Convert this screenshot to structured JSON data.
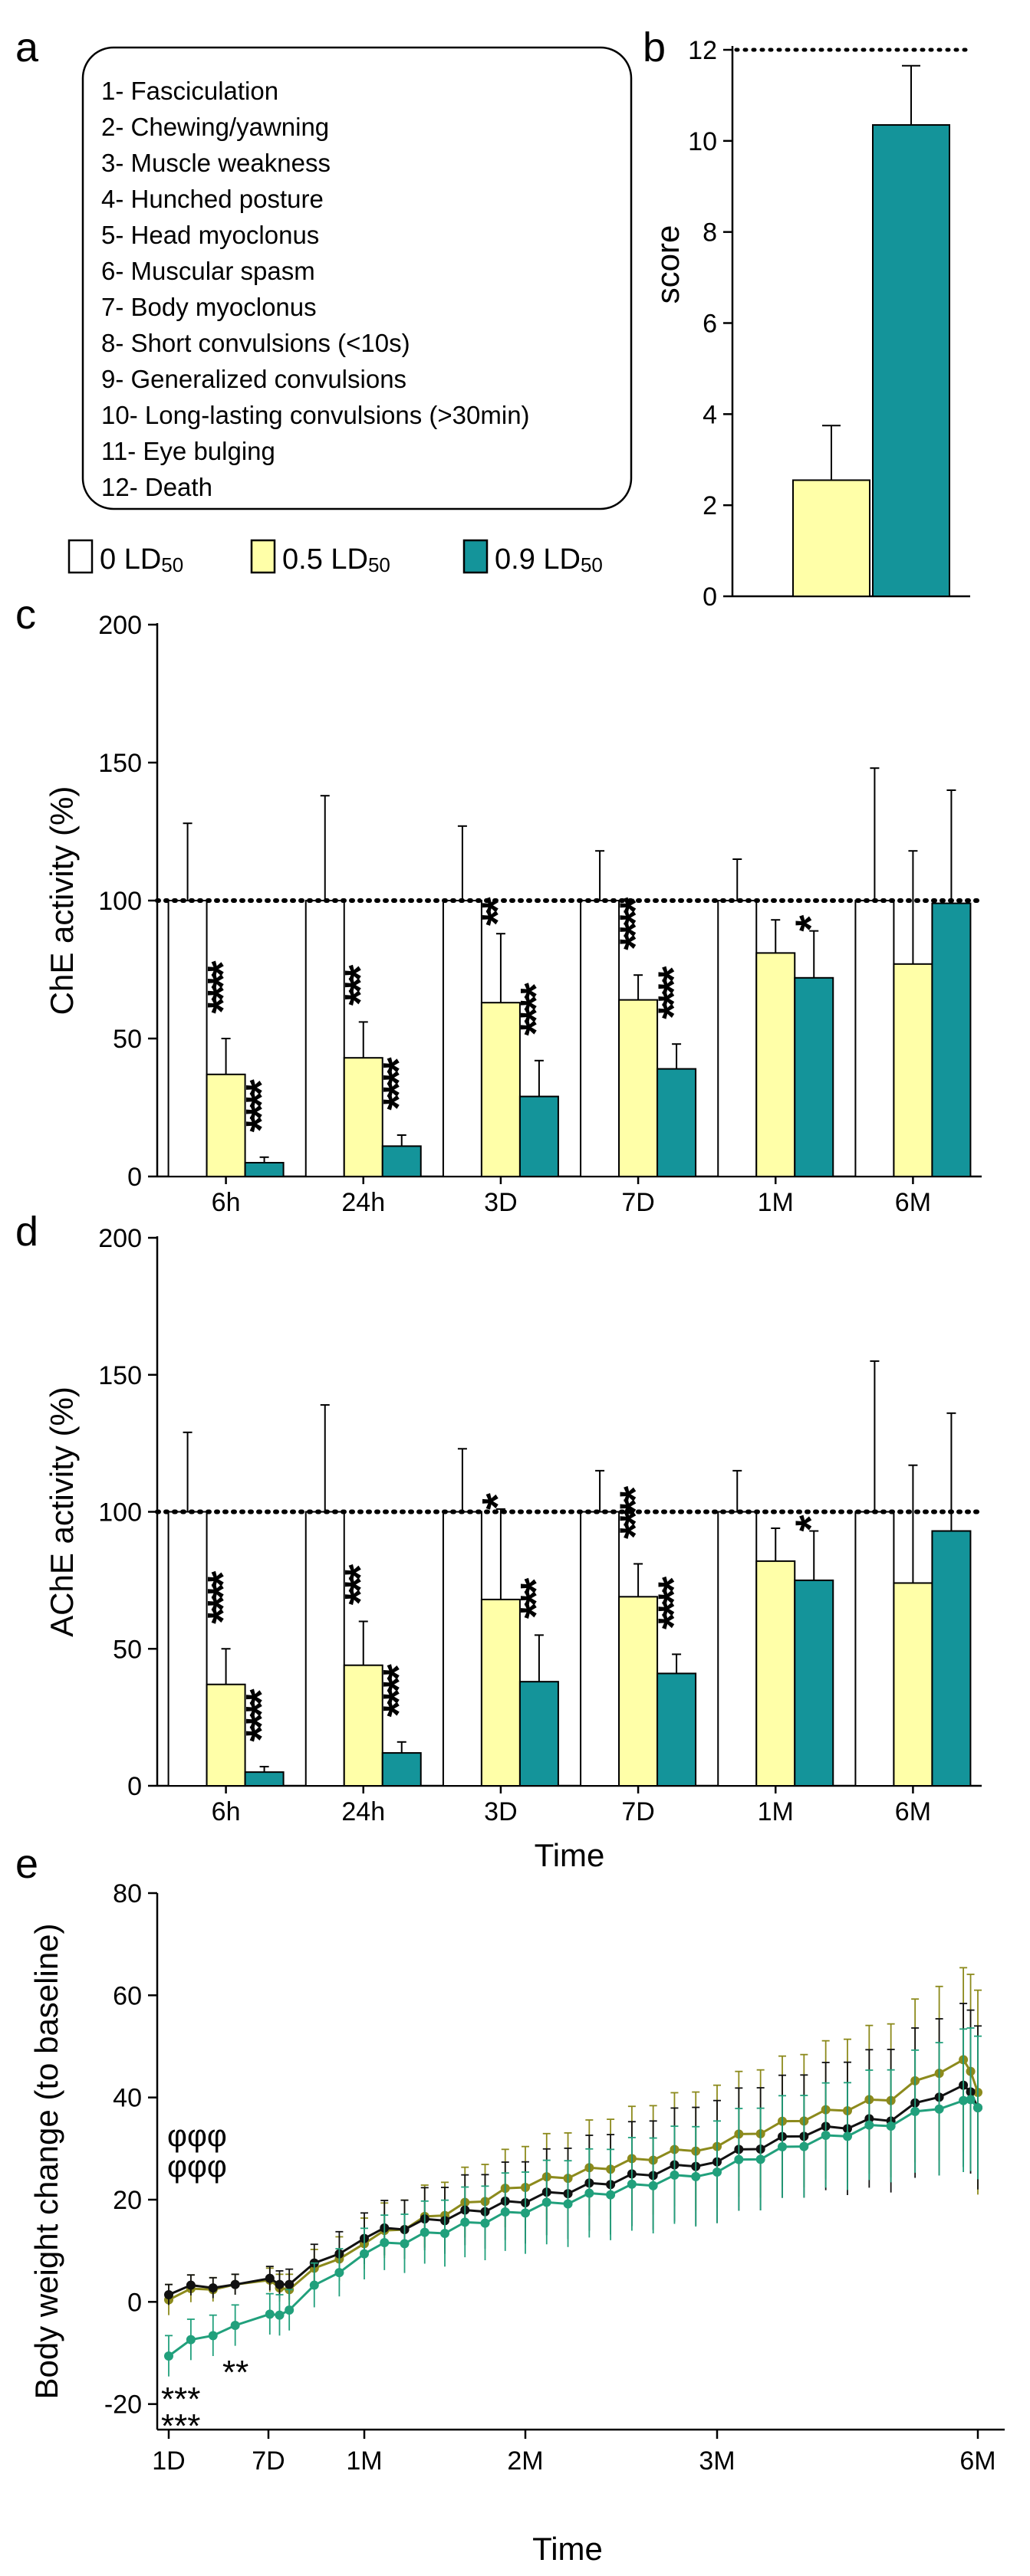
{
  "colors": {
    "c0": "#ffffff",
    "c05": "#ffffa8",
    "c09": "#14949a",
    "axis": "#000000",
    "line_black": "#111111",
    "line_olive": "#8c8a1c",
    "line_green": "#21a07c"
  },
  "panel_labels": {
    "a": "a",
    "b": "b",
    "c": "c",
    "d": "d",
    "e": "e"
  },
  "scale_list": [
    "1-   Fasciculation",
    "2-   Chewing/yawning",
    "3-   Muscle weakness",
    "4-   Hunched posture",
    "5-   Head myoclonus",
    "6-   Muscular spasm",
    "7-   Body myoclonus",
    "8-   Short convulsions (<10s)",
    "9-   Generalized convulsions",
    "10- Long-lasting convulsions (>30min)",
    "11- Eye bulging",
    "12- Death"
  ],
  "legend": [
    {
      "num": "0 LD",
      "sub": "50"
    },
    {
      "num": "0.5 LD",
      "sub": "50"
    },
    {
      "num": "0.9 LD",
      "sub": "50"
    }
  ],
  "chart_data": [
    {
      "panel": "b",
      "type": "bar",
      "ylabel": "score",
      "ylim": [
        0,
        12
      ],
      "yticks": [
        "0",
        "2",
        "4",
        "6",
        "8",
        "10",
        "12"
      ],
      "reference_line": 12,
      "series": [
        {
          "name": "0.5 LD50",
          "values": [
            2.55
          ],
          "error": [
            1.2
          ]
        },
        {
          "name": "0.9 LD50",
          "values": [
            10.35
          ],
          "error": [
            1.3
          ]
        }
      ]
    },
    {
      "panel": "c",
      "type": "bar",
      "ylabel": "ChE activity (%)",
      "xlabel": "",
      "ylim": [
        0,
        200
      ],
      "yticks": [
        "0",
        "50",
        "100",
        "150",
        "200"
      ],
      "reference_line": 100,
      "categories": [
        "6h",
        "24h",
        "3D",
        "7D",
        "1M",
        "6M"
      ],
      "series": [
        {
          "name": "0 LD50",
          "values": [
            100,
            100,
            100,
            100,
            100,
            100
          ],
          "error": [
            28,
            38,
            27,
            18,
            15,
            48
          ]
        },
        {
          "name": "0.5 LD50",
          "values": [
            37,
            43,
            63,
            64,
            81,
            77
          ],
          "error": [
            13,
            13,
            25,
            9,
            12,
            41
          ]
        },
        {
          "name": "0.9 LD50",
          "values": [
            5,
            11,
            29,
            39,
            72,
            99
          ],
          "error": [
            2,
            4,
            13,
            9,
            17,
            41
          ]
        }
      ],
      "annotations": [
        {
          "text": "****",
          "category": "6h",
          "series": "0.5 LD50"
        },
        {
          "text": "****",
          "category": "6h",
          "series": "0.9 LD50"
        },
        {
          "text": "***",
          "category": "24h",
          "series": "0.5 LD50"
        },
        {
          "text": "****",
          "category": "24h",
          "series": "0.9 LD50"
        },
        {
          "text": "**",
          "category": "3D",
          "series": "0.5 LD50"
        },
        {
          "text": "****",
          "category": "3D",
          "series": "0.9 LD50"
        },
        {
          "text": "****",
          "category": "7D",
          "series": "0.5 LD50"
        },
        {
          "text": "****",
          "category": "7D",
          "series": "0.9 LD50"
        },
        {
          "text": "*",
          "category": "1M",
          "series": "0.9 LD50"
        }
      ]
    },
    {
      "panel": "d",
      "type": "bar",
      "ylabel": "AChE activity (%)",
      "xlabel": "Time",
      "ylim": [
        0,
        200
      ],
      "yticks": [
        "0",
        "50",
        "100",
        "150",
        "200"
      ],
      "reference_line": 100,
      "categories": [
        "6h",
        "24h",
        "3D",
        "7D",
        "1M",
        "6M"
      ],
      "series": [
        {
          "name": "0 LD50",
          "values": [
            100,
            100,
            100,
            100,
            100,
            100
          ],
          "error": [
            29,
            39,
            23,
            15,
            15,
            55
          ]
        },
        {
          "name": "0.5 LD50",
          "values": [
            37,
            44,
            68,
            69,
            82,
            74
          ],
          "error": [
            13,
            16,
            33,
            12,
            12,
            43
          ]
        },
        {
          "name": "0.9 LD50",
          "values": [
            5,
            12,
            38,
            41,
            75,
            93
          ],
          "error": [
            2,
            4,
            17,
            7,
            18,
            43
          ]
        }
      ],
      "annotations": [
        {
          "text": "****",
          "category": "6h",
          "series": "0.5 LD50"
        },
        {
          "text": "****",
          "category": "6h",
          "series": "0.9 LD50"
        },
        {
          "text": "***",
          "category": "24h",
          "series": "0.5 LD50"
        },
        {
          "text": "****",
          "category": "24h",
          "series": "0.9 LD50"
        },
        {
          "text": "*",
          "category": "3D",
          "series": "0.5 LD50"
        },
        {
          "text": "***",
          "category": "3D",
          "series": "0.9 LD50"
        },
        {
          "text": "****",
          "category": "7D",
          "series": "0.5 LD50"
        },
        {
          "text": "****",
          "category": "7D",
          "series": "0.9 LD50"
        },
        {
          "text": "*",
          "category": "1M",
          "series": "0.9 LD50"
        }
      ]
    },
    {
      "panel": "e",
      "type": "line",
      "ylabel": "Body weight change (to baseline)",
      "xlabel": "Time",
      "ylim": [
        -25,
        80
      ],
      "yticks": [
        "-20",
        "0",
        "20",
        "40",
        "60",
        "80"
      ],
      "xlim": [
        1,
        180
      ],
      "xticks": [
        {
          "label": "1D",
          "x": 1
        },
        {
          "label": "7D",
          "x": 7
        },
        {
          "label": "1M",
          "x": 30
        },
        {
          "label": "2M",
          "x": 60
        },
        {
          "label": "3M",
          "x": 90
        },
        {
          "label": "6M",
          "x": 180
        }
      ],
      "series": [
        {
          "name": "0.5 LD50",
          "color": "olive",
          "x": [
            1,
            5,
            12,
            30,
            60,
            90,
            120,
            150,
            175,
            180
          ],
          "y": [
            1,
            4,
            3,
            12,
            23,
            31,
            36,
            40,
            48,
            41
          ],
          "error": [
            3,
            2,
            3,
            5,
            8,
            12,
            13,
            15,
            18,
            20
          ]
        },
        {
          "name": "0 LD50",
          "color": "black",
          "x": [
            1,
            5,
            12,
            30,
            60,
            90,
            120,
            150,
            175,
            180
          ],
          "y": [
            2,
            4,
            4,
            13,
            20,
            28,
            33,
            36,
            43,
            38
          ],
          "error": [
            2,
            2,
            3,
            5,
            8,
            12,
            12,
            14,
            16,
            16
          ]
        },
        {
          "name": "0.9 LD50",
          "color": "green",
          "x": [
            1,
            5,
            12,
            30,
            60,
            90,
            120,
            150,
            175,
            180
          ],
          "y": [
            -10,
            -4,
            -1,
            10,
            18,
            26,
            31,
            35,
            40,
            38
          ],
          "error": [
            4,
            4,
            4,
            5,
            8,
            10,
            10,
            11,
            14,
            14
          ]
        }
      ],
      "annotations": [
        {
          "text": "φφφ",
          "x": 1
        },
        {
          "text": "φφφ",
          "x": 1
        },
        {
          "text": "***",
          "x": 1
        },
        {
          "text": "***",
          "x": 1
        },
        {
          "text": "**",
          "x": 5
        }
      ]
    }
  ]
}
